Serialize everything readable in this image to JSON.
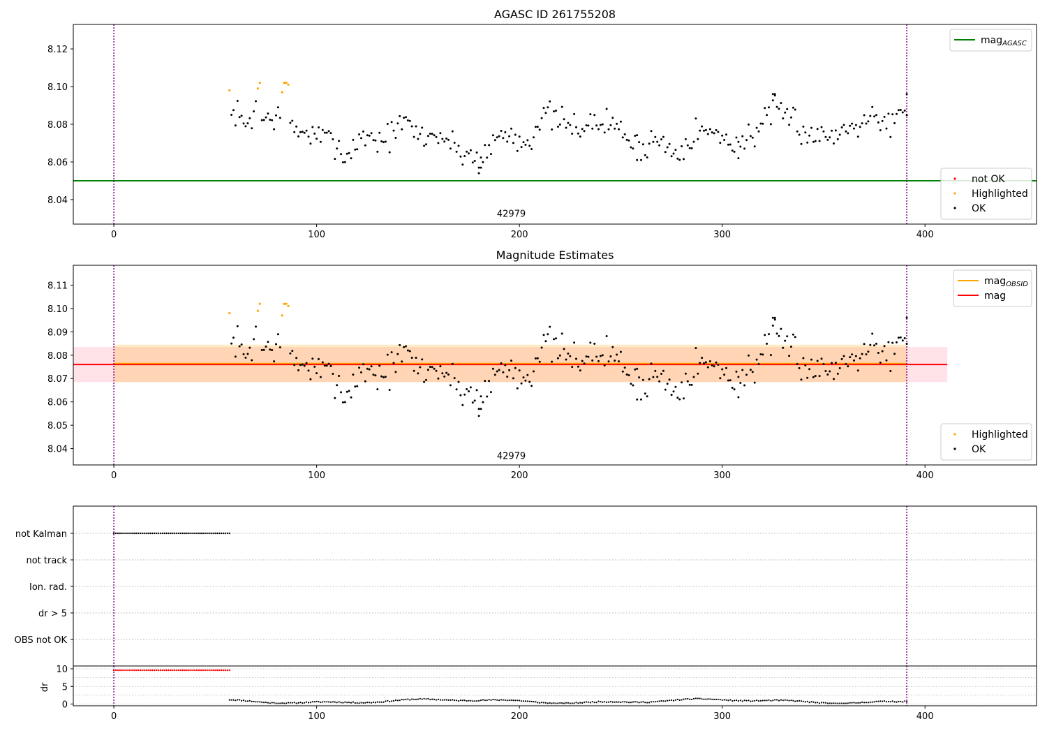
{
  "chart_data": [
    {
      "type": "scatter",
      "title": "AGASC ID 261755208",
      "xlim": [
        -20,
        455
      ],
      "ylim": [
        8.027,
        8.133
      ],
      "xticks": [
        0,
        100,
        200,
        300,
        400
      ],
      "yticks": [
        8.04,
        8.06,
        8.08,
        8.1,
        8.12
      ],
      "ytick_format": 2,
      "hlines": [
        {
          "y": 8.05,
          "color": "#008000",
          "label": "mag_AGASC"
        }
      ],
      "vlines": [
        {
          "x": 0,
          "color": "#800080"
        },
        {
          "x": 391,
          "color": "#800080"
        }
      ],
      "annotation": {
        "text": "42979",
        "x": 196,
        "y": 8.0308
      },
      "highlighted": [
        [
          57,
          8.098
        ],
        [
          71,
          8.099
        ],
        [
          72,
          8.102
        ],
        [
          83,
          8.097
        ],
        [
          84,
          8.102
        ],
        [
          85,
          8.102
        ],
        [
          86,
          8.101
        ]
      ],
      "not_ok": [],
      "ok_points": {
        "x_start": 57,
        "x_end": 391,
        "seed": 7,
        "key": [
          [
            57,
            8.081
          ],
          [
            60,
            8.087
          ],
          [
            64,
            8.079
          ],
          [
            68,
            8.084
          ],
          [
            70,
            8.09
          ],
          [
            74,
            8.082
          ],
          [
            78,
            8.084
          ],
          [
            82,
            8.084
          ],
          [
            85,
            8.08
          ],
          [
            90,
            8.076
          ],
          [
            95,
            8.076
          ],
          [
            100,
            8.073
          ],
          [
            105,
            8.072
          ],
          [
            110,
            8.071
          ],
          [
            114,
            8.061
          ],
          [
            118,
            8.069
          ],
          [
            122,
            8.072
          ],
          [
            126,
            8.075
          ],
          [
            130,
            8.071
          ],
          [
            135,
            8.073
          ],
          [
            140,
            8.078
          ],
          [
            145,
            8.081
          ],
          [
            150,
            8.074
          ],
          [
            155,
            8.073
          ],
          [
            160,
            8.075
          ],
          [
            165,
            8.071
          ],
          [
            170,
            8.066
          ],
          [
            175,
            8.064
          ],
          [
            180,
            8.061
          ],
          [
            185,
            8.067
          ],
          [
            190,
            8.074
          ],
          [
            195,
            8.075
          ],
          [
            200,
            8.071
          ],
          [
            205,
            8.072
          ],
          [
            210,
            8.082
          ],
          [
            215,
            8.085
          ],
          [
            220,
            8.081
          ],
          [
            225,
            8.078
          ],
          [
            230,
            8.08
          ],
          [
            235,
            8.079
          ],
          [
            240,
            8.081
          ],
          [
            245,
            8.08
          ],
          [
            250,
            8.078
          ],
          [
            255,
            8.07
          ],
          [
            260,
            8.067
          ],
          [
            265,
            8.072
          ],
          [
            270,
            8.071
          ],
          [
            275,
            8.066
          ],
          [
            280,
            8.068
          ],
          [
            285,
            8.074
          ],
          [
            290,
            8.077
          ],
          [
            295,
            8.075
          ],
          [
            300,
            8.073
          ],
          [
            305,
            8.071
          ],
          [
            310,
            8.07
          ],
          [
            315,
            8.075
          ],
          [
            320,
            8.081
          ],
          [
            325,
            8.087
          ],
          [
            330,
            8.083
          ],
          [
            335,
            8.084
          ],
          [
            340,
            8.076
          ],
          [
            345,
            8.075
          ],
          [
            350,
            8.073
          ],
          [
            355,
            8.075
          ],
          [
            360,
            8.077
          ],
          [
            365,
            8.081
          ],
          [
            370,
            8.084
          ],
          [
            375,
            8.087
          ],
          [
            378,
            8.08
          ],
          [
            385,
            8.082
          ],
          [
            391,
            8.087
          ]
        ],
        "outliers": [
          [
            180,
            8.057
          ],
          [
            181,
            8.057
          ],
          [
            258,
            8.061
          ],
          [
            308,
            8.062
          ],
          [
            325,
            8.096
          ],
          [
            326,
            8.096
          ],
          [
            391,
            8.096
          ]
        ]
      },
      "legends": [
        {
          "place": "upper right",
          "items": [
            {
              "kind": "line",
              "color": "#008000",
              "label": "mag",
              "sub": "AGASC"
            }
          ]
        },
        {
          "place": "lower right",
          "items": [
            {
              "kind": "dot",
              "color": "#ff0000",
              "label": "not OK"
            },
            {
              "kind": "dot",
              "color": "#ffa500",
              "label": "Highlighted"
            },
            {
              "kind": "dot",
              "color": "#000000",
              "label": "OK"
            }
          ]
        }
      ]
    },
    {
      "type": "scatter",
      "title": "Magnitude Estimates",
      "xlim": [
        -20,
        455
      ],
      "ylim": [
        8.033,
        8.1185
      ],
      "xticks": [
        0,
        100,
        200,
        300,
        400
      ],
      "yticks": [
        8.04,
        8.05,
        8.06,
        8.07,
        8.08,
        8.09,
        8.1,
        8.11
      ],
      "ytick_format": 2,
      "hlines": [
        {
          "y": 8.076,
          "color": "#ff0000",
          "label": "mag",
          "x0": -20,
          "x1": 411
        }
      ],
      "bands": [
        {
          "y0": 8.0685,
          "y1": 8.0835,
          "x0": -20,
          "x1": 411,
          "color": "#ffc0cb",
          "opacity": 0.45
        },
        {
          "y0": 8.0685,
          "y1": 8.0845,
          "x0": 0,
          "x1": 391,
          "color": "#ffa500",
          "opacity": 0.22
        }
      ],
      "vlines": [
        {
          "x": 0,
          "color": "#800080"
        },
        {
          "x": 391,
          "color": "#800080"
        }
      ],
      "annotation": {
        "text": "42979",
        "x": 196,
        "y": 8.0355
      },
      "highlighted": [
        [
          57,
          8.098
        ],
        [
          71,
          8.099
        ],
        [
          72,
          8.102
        ],
        [
          83,
          8.097
        ],
        [
          84,
          8.102
        ],
        [
          85,
          8.102
        ],
        [
          86,
          8.101
        ]
      ],
      "legends": [
        {
          "place": "upper right",
          "items": [
            {
              "kind": "line",
              "color": "#ffa500",
              "label": "mag",
              "sub": "OBSID"
            },
            {
              "kind": "line",
              "color": "#ff0000",
              "label": "mag"
            }
          ]
        },
        {
          "place": "lower right",
          "items": [
            {
              "kind": "dot",
              "color": "#ffa500",
              "label": "Highlighted"
            },
            {
              "kind": "dot",
              "color": "#000000",
              "label": "OK"
            }
          ]
        }
      ]
    },
    {
      "type": "scatter",
      "title": "",
      "categories": [
        "not Kalman",
        "not track",
        "Ion. rad.",
        "dr > 5",
        "OBS not OK"
      ],
      "xlim": [
        -20,
        455
      ],
      "not_kalman_range": [
        0,
        57
      ],
      "vlines": [
        {
          "x": 0,
          "color": "#800080"
        },
        {
          "x": 391,
          "color": "#800080"
        }
      ]
    },
    {
      "type": "scatter",
      "title": "",
      "ylabel": "dr",
      "xlim": [
        -20,
        455
      ],
      "ylim": [
        -0.5,
        10.8
      ],
      "xticks": [
        0,
        100,
        200,
        300,
        400
      ],
      "yticks": [
        0,
        5,
        10
      ],
      "dr_high": {
        "x_start": 0,
        "x_end": 57,
        "value": 9.6,
        "color": "#ff0000"
      },
      "dr_low": {
        "x_start": 57,
        "x_end": 391,
        "value_range": [
          0.2,
          1.6
        ]
      },
      "vlines": [
        {
          "x": 0,
          "color": "#800080"
        },
        {
          "x": 391,
          "color": "#800080"
        }
      ]
    }
  ]
}
